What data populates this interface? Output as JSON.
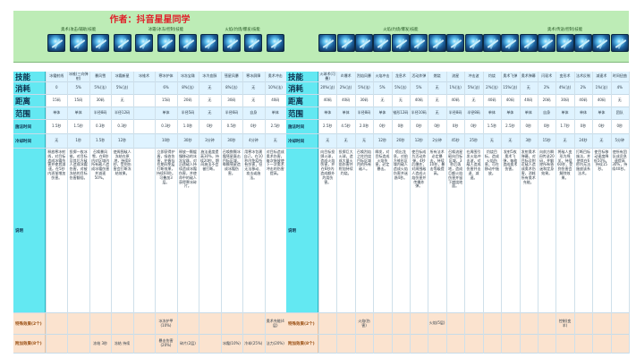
{
  "sheet": {
    "title": "作者：抖音星星同学",
    "colors": {
      "header": "#bdecb6",
      "label": "#63e8f2",
      "title": "#e0202a",
      "peach": "#fbe3cf",
      "blue": "#dff3ff"
    }
  },
  "row_labels": {
    "skill": "技能",
    "cost": "消耗",
    "distance": "距离",
    "range": "范围",
    "release_time": "施法时间",
    "cooldown": "冷却时间",
    "notes": "说明",
    "extra1": "特殊效果(2个)",
    "extra2": "附加效果(8个)"
  },
  "left_panel": {
    "groups": [
      "奥术(攻击/辅助)技能",
      "冰霜(冰冻/控制)技能",
      "火焰(灼烧/爆发)技能"
    ],
    "icons": [
      "frost-bolt-icon",
      "ice-lance-icon",
      "blizzard-icon",
      "frost-nova-icon",
      "cone-of-cold-icon",
      "ice-barrier-icon",
      "frozen-orb-icon",
      "icy-veins-icon",
      "comet-storm-icon",
      "ice-block-icon",
      "arcane-blast-icon"
    ],
    "columns": [
      {
        "skill": "冰霜射线",
        "cost": "0",
        "distance": "15码",
        "range": "单体",
        "release": "1.5秒",
        "cooldown": "无",
        "notes": "释放寒冰射线，对目标造成冰霜伤害并使其减速。在5秒内逐渐增加伤害。",
        "e1": "",
        "e2": ""
      },
      {
        "skill": "冰锥(三向弹射)",
        "cost": "5%",
        "distance": "15码",
        "range": "单体",
        "release": "1.5秒",
        "cooldown": "1秒",
        "notes": "投掷一枚冰锥，对目标及其后方敌人造成冰霜伤害，对被冻结的目标伤害翻倍。",
        "e1": "",
        "e2": ""
      },
      {
        "skill": "暴风雪",
        "cost": "5%(法)",
        "distance": "30码",
        "range": "半径8码",
        "release": "0.3秒",
        "cooldown": "1.5秒",
        "notes": "召唤暴风雪，在8秒内对区域内所有敌人造成冰霜伤害并减速50%。",
        "e1": "",
        "e2": "冻结 3秒"
      },
      {
        "skill": "冰霜新星",
        "cost": "5%(法)",
        "distance": "无",
        "range": "半径12码",
        "release": "0.3秒",
        "cooldown": "12秒",
        "notes": "使周围敌人冻结在原地，持续8秒，受到伤害会打断冻结效果。",
        "e1": "",
        "e2": "冻结 持续"
      },
      {
        "skill": "冰锥术",
        "cost": "",
        "distance": "",
        "range": "",
        "release": "",
        "cooldown": "",
        "notes": "",
        "e1": "",
        "e2": ""
      },
      {
        "skill": "寒冰护体",
        "cost": "6%",
        "distance": "15码",
        "range": "单体",
        "release": "0.3秒",
        "cooldown": "10秒",
        "notes": "立即获得护盾，吸收伤害，护盾存在期间免疫打断效果，持续60秒。可叠加3层。",
        "e1": "冰冻护甲(10%)",
        "e2": "暴击伤害(20%)"
      },
      {
        "skill": "冰冻宝珠",
        "cost": "8%(法)",
        "distance": "20码",
        "range": "半径5码",
        "release": "1.0秒",
        "cooldown": "30秒",
        "notes": "释放一颗缓慢移动的冰冻宝珠，对沿途敌人持续造成冰霜伤害，并使命中的敌人获得寒冰碎片。",
        "e1": "",
        "e2": "碎片(2层)"
      },
      {
        "skill": "冰冷血脉",
        "cost": "无",
        "distance": "无",
        "range": "无",
        "release": "0秒",
        "cooldown": "3分钟",
        "notes": "施法速度提高30%，持续20秒，期间施法不会被打断。",
        "e1": "",
        "e2": ""
      },
      {
        "skill": "彗星风暴",
        "cost": "8%(法)",
        "distance": "30码",
        "range": "半径6码",
        "release": "0.5秒",
        "cooldown": "30秒",
        "notes": "召唤数颗冰霜彗星轰击目标区域，每颗彗星造成冰霜伤害。",
        "e1": "",
        "e2": "冰霜(10%)"
      },
      {
        "skill": "寒冰屏障",
        "cost": "无",
        "distance": "无",
        "range": "自身",
        "release": "0秒",
        "cooldown": "4分钟",
        "notes": "用寒冰包裹自己，在10秒内免疫所有伤害，但无法移动、攻击或施法。",
        "e1": "",
        "e2": "冷却(25%)"
      },
      {
        "skill": "奥术冲击",
        "cost": "10%(法)",
        "distance": "40码",
        "range": "单体",
        "release": "2.5秒",
        "cooldown": "无",
        "notes": "对目标造成奥术伤害，每次施放使下一次奥术冲击的伤害提高。",
        "e1": "奥术充能(4层)",
        "e2": "法力(20%)"
      }
    ]
  },
  "right_panel": {
    "groups": [
      "火焰(灼烧/爆发)技能",
      "奥术(传送/控制)技能"
    ],
    "icons": [
      "fireball-icon",
      "pyroblast-icon",
      "flamestrike-icon",
      "fire-blast-icon",
      "dragons-breath-icon",
      "living-bomb-icon",
      "combustion-icon",
      "meteor-icon",
      "blast-wave-icon",
      "scorch-icon",
      "arcane-missiles-icon",
      "arcane-barrage-icon",
      "blink-icon",
      "polymorph-icon",
      "counterspell-icon",
      "slow-icon",
      "time-warp-icon"
    ],
    "columns": [
      {
        "skill": "火球术(可叠)",
        "cost": "20%(法)",
        "distance": "40码",
        "range": "单体",
        "release": "2.5秒",
        "cooldown": "无",
        "notes": "向目标投掷火球，造成火焰伤害，并在8秒内造成额外灼烧伤害。",
        "e1": "",
        "e2": ""
      },
      {
        "skill": "炎爆术",
        "cost": "2%(法)",
        "distance": "40码",
        "range": "单体",
        "release": "4.5秒",
        "cooldown": "无",
        "notes": "投掷巨大火球，造成大量火焰伤害并附加持续灼烧。",
        "e1": "",
        "e2": ""
      },
      {
        "skill": "烈焰风暴",
        "cost": "5%(法)",
        "distance": "30码",
        "range": "半径8码",
        "release": "2.0秒",
        "cooldown": "无",
        "notes": "召唤烈焰之柱灼烧目标区域内的所有敌人。",
        "e1": "火焰(伤害)",
        "e2": ""
      },
      {
        "skill": "火焰冲击",
        "cost": "5%",
        "distance": "无",
        "range": "单体",
        "release": "0秒",
        "cooldown": "12秒",
        "notes": "瞬发，对目标造成火焰伤害，必定暴击。",
        "e1": "",
        "e2": ""
      },
      {
        "skill": "龙息术",
        "cost": "5%(法)",
        "distance": "无",
        "range": "锥形12码",
        "release": "0秒",
        "cooldown": "20秒",
        "notes": "喷出龙息，对前方锥形区域内敌人造成火焰伤害并迷惑4秒。",
        "e1": "",
        "e2": ""
      },
      {
        "skill": "活动炸弹",
        "cost": "5%",
        "distance": "40码",
        "range": "半径10码",
        "release": "0秒",
        "cooldown": "12秒",
        "notes": "使目标成为活动炸弹，4秒后爆炸，对周围敌人造成火焰伤害并传播炸弹。",
        "e1": "",
        "e2": ""
      },
      {
        "skill": "燃烧",
        "cost": "无",
        "distance": "无",
        "range": "无",
        "release": "0秒",
        "cooldown": "2分钟",
        "notes": "所有法术必定暴击，持续10秒，暴击等级提高。",
        "e1": "火焰(5层)",
        "e2": ""
      },
      {
        "skill": "流星",
        "cost": "1%(法)",
        "distance": "40码",
        "range": "半径8码",
        "release": "0秒",
        "cooldown": "45秒",
        "notes": "召唤流星砸向目标区域，3秒后落地，造成巨额火焰伤害并留下燃烧地面。",
        "e1": "",
        "e2": ""
      },
      {
        "skill": "冲击波",
        "cost": "5%(法)",
        "distance": "无",
        "range": "半径8码",
        "release": "0秒",
        "cooldown": "25秒",
        "notes": "在周围引发火焰冲击波，对敌人造成伤害并击退、减速。",
        "e1": "",
        "e2": ""
      },
      {
        "skill": "灼烧",
        "cost": "2%(法)",
        "distance": "40码",
        "range": "单体",
        "release": "1.5秒",
        "cooldown": "无",
        "notes": "灼烧目标，造成火焰伤害，可在移动中施放。",
        "e1": "",
        "e2": ""
      },
      {
        "skill": "奥术飞弹",
        "cost": "15%(法)",
        "distance": "40码",
        "range": "单体",
        "release": "2.5秒",
        "cooldown": "无",
        "notes": "发射5枚奥术飞弹，每枚造成奥术伤害。",
        "e1": "",
        "e2": ""
      },
      {
        "skill": "奥术弹幕",
        "cost": "无",
        "distance": "40码",
        "range": "单体",
        "release": "0秒",
        "cooldown": "3秒",
        "notes": "发射奥术弹幕，对目标及附近敌人造成奥术伤害，消耗所有奥术充能。",
        "e1": "",
        "e2": ""
      },
      {
        "skill": "闪现术",
        "cost": "2%",
        "distance": "20码",
        "range": "自身",
        "release": "0秒",
        "cooldown": "15秒",
        "notes": "向前方瞬间传送20码，并解除所有昏迷和定身效果。",
        "e1": "",
        "e2": ""
      },
      {
        "skill": "变形术",
        "cost": "4%(法)",
        "distance": "30码",
        "range": "单体",
        "release": "1.7秒",
        "cooldown": "无",
        "notes": "将敌人变形为绵羊，持续60秒，受到伤害会解除效果。",
        "e1": "控制(变羊)",
        "e2": ""
      },
      {
        "skill": "法术反制",
        "cost": "2%",
        "distance": "40码",
        "range": "单体",
        "release": "0秒",
        "cooldown": "24秒",
        "notes": "打断目标施法，并使其在6秒内无法施放该系法术。",
        "e1": "",
        "e2": ""
      },
      {
        "skill": "减速术",
        "cost": "1%(法)",
        "distance": "40码",
        "range": "单体",
        "release": "0秒",
        "cooldown": "无",
        "notes": "使目标移动速度降低50%，持续15秒。",
        "e1": "",
        "e2": ""
      },
      {
        "skill": "时间扭曲",
        "cost": "4%",
        "distance": "无",
        "range": "团队",
        "release": "0秒",
        "cooldown": "5分钟",
        "notes": "使所有团队成员急速提高30%，持续40秒。",
        "e1": "",
        "e2": ""
      }
    ]
  }
}
